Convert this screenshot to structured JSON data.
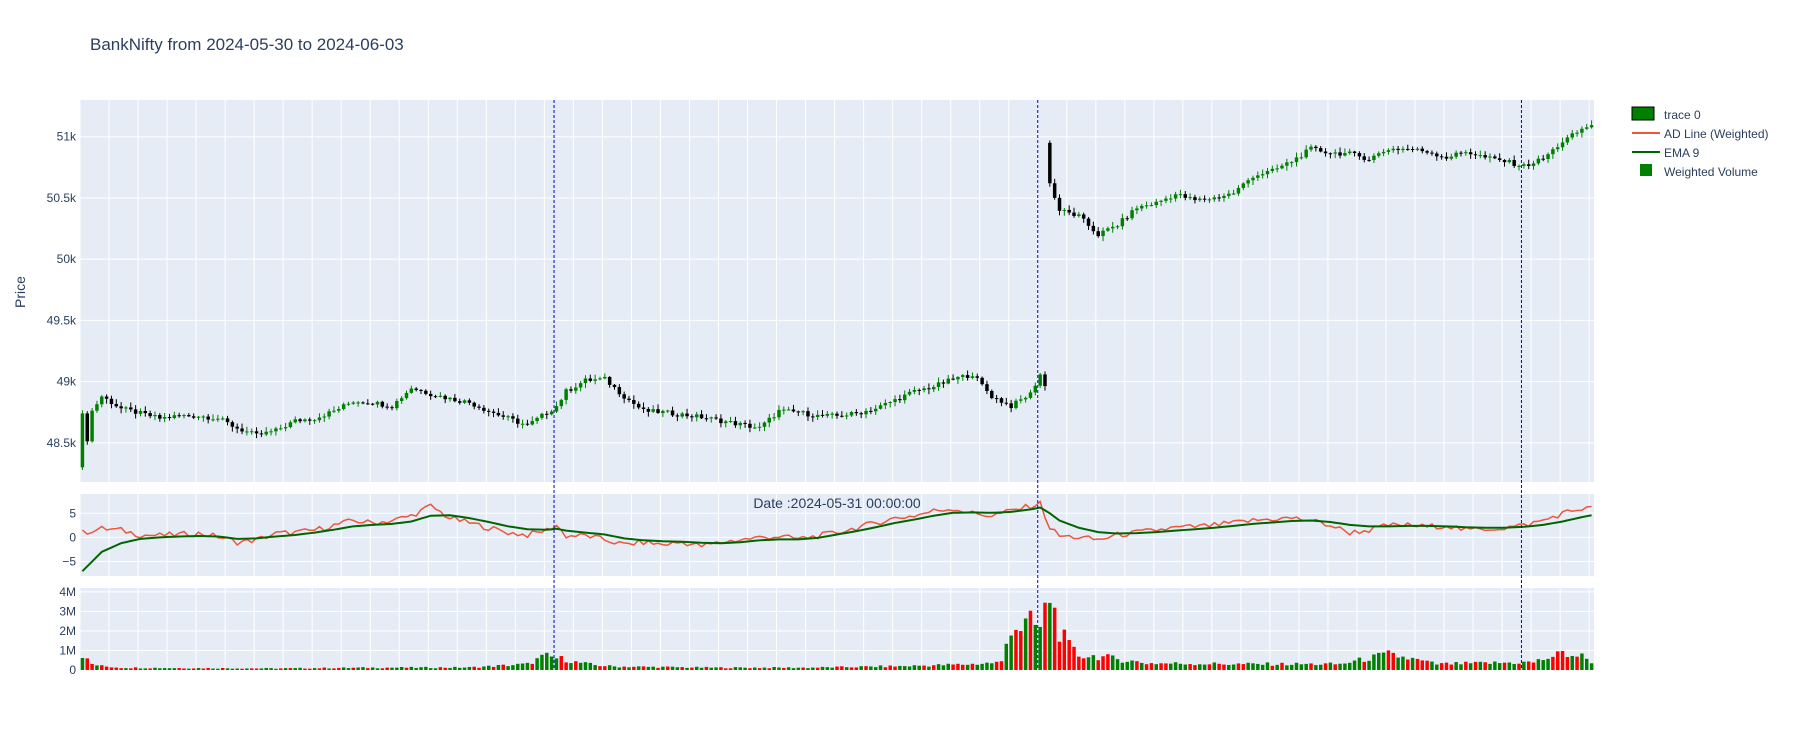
{
  "chart_data": {
    "type": "candlestick",
    "title": "BankNifty from 2024-05-30 to 2024-06-03",
    "panels": {
      "price": {
        "ylabel": "Price",
        "yrange": [
          48180,
          51300
        ],
        "yticks": [
          48500,
          49000,
          49500,
          50000,
          50500,
          51000
        ],
        "ytick_labels": [
          "48.5k",
          "49k",
          "49.5k",
          "50k",
          "50.5k",
          "51k"
        ]
      },
      "ad": {
        "yrange": [
          -8,
          9
        ],
        "yticks": [
          -5,
          0,
          5
        ],
        "ytick_labels": [
          "−5",
          "0",
          "5"
        ]
      },
      "volume": {
        "yrange": [
          0,
          4200000
        ],
        "yticks": [
          0,
          1000000,
          2000000,
          3000000,
          4000000
        ],
        "ytick_labels": [
          "0",
          "1M",
          "2M",
          "3M",
          "4M"
        ]
      }
    },
    "session_markers": [
      98,
      198,
      298
    ],
    "hover_annotation": "Date :2024-05-31 00:00:00",
    "price_path": [
      [
        0,
        48300
      ],
      [
        2,
        48760
      ],
      [
        4,
        48880
      ],
      [
        8,
        48780
      ],
      [
        12,
        48740
      ],
      [
        16,
        48700
      ],
      [
        20,
        48720
      ],
      [
        24,
        48720
      ],
      [
        28,
        48700
      ],
      [
        32,
        48620
      ],
      [
        36,
        48560
      ],
      [
        40,
        48600
      ],
      [
        44,
        48680
      ],
      [
        48,
        48700
      ],
      [
        52,
        48760
      ],
      [
        56,
        48840
      ],
      [
        60,
        48830
      ],
      [
        64,
        48800
      ],
      [
        68,
        48950
      ],
      [
        72,
        48900
      ],
      [
        76,
        48860
      ],
      [
        80,
        48830
      ],
      [
        84,
        48760
      ],
      [
        88,
        48700
      ],
      [
        92,
        48640
      ],
      [
        95,
        48720
      ],
      [
        98,
        48800
      ],
      [
        100,
        48920
      ],
      [
        104,
        49010
      ],
      [
        108,
        49020
      ],
      [
        112,
        48880
      ],
      [
        116,
        48760
      ],
      [
        120,
        48750
      ],
      [
        124,
        48730
      ],
      [
        128,
        48710
      ],
      [
        132,
        48680
      ],
      [
        136,
        48650
      ],
      [
        140,
        48620
      ],
      [
        144,
        48760
      ],
      [
        148,
        48750
      ],
      [
        152,
        48720
      ],
      [
        156,
        48720
      ],
      [
        160,
        48740
      ],
      [
        164,
        48780
      ],
      [
        168,
        48850
      ],
      [
        172,
        48920
      ],
      [
        176,
        48960
      ],
      [
        180,
        49020
      ],
      [
        184,
        49060
      ],
      [
        188,
        48880
      ],
      [
        192,
        48800
      ],
      [
        196,
        48900
      ],
      [
        198,
        49060
      ],
      [
        199,
        48960
      ]
    ],
    "price_path_2": [
      [
        200,
        50600
      ],
      [
        202,
        50400
      ],
      [
        206,
        50350
      ],
      [
        210,
        50200
      ],
      [
        214,
        50280
      ],
      [
        218,
        50420
      ],
      [
        222,
        50460
      ],
      [
        226,
        50530
      ],
      [
        230,
        50480
      ],
      [
        234,
        50500
      ],
      [
        238,
        50540
      ],
      [
        242,
        50680
      ],
      [
        246,
        50720
      ],
      [
        250,
        50800
      ],
      [
        254,
        50900
      ],
      [
        258,
        50870
      ],
      [
        262,
        50860
      ],
      [
        266,
        50820
      ],
      [
        270,
        50900
      ],
      [
        274,
        50900
      ],
      [
        278,
        50880
      ],
      [
        282,
        50830
      ],
      [
        286,
        50880
      ],
      [
        290,
        50830
      ],
      [
        294,
        50800
      ],
      [
        298,
        50760
      ],
      [
        302,
        50820
      ],
      [
        306,
        50960
      ],
      [
        310,
        51060
      ],
      [
        312,
        51100
      ]
    ],
    "ad_path": [
      [
        0,
        1
      ],
      [
        4,
        1.8
      ],
      [
        8,
        1.5
      ],
      [
        12,
        0.5
      ],
      [
        16,
        0.4
      ],
      [
        20,
        0.6
      ],
      [
        24,
        0.8
      ],
      [
        28,
        0.2
      ],
      [
        32,
        -1
      ],
      [
        36,
        -0.5
      ],
      [
        40,
        0.8
      ],
      [
        44,
        1
      ],
      [
        48,
        1.5
      ],
      [
        52,
        2.5
      ],
      [
        56,
        3.5
      ],
      [
        60,
        3
      ],
      [
        64,
        3.5
      ],
      [
        68,
        4.5
      ],
      [
        72,
        6.5
      ],
      [
        76,
        4
      ],
      [
        80,
        3
      ],
      [
        84,
        2
      ],
      [
        88,
        1
      ],
      [
        92,
        0.5
      ],
      [
        96,
        1.5
      ],
      [
        98,
        2.5
      ],
      [
        100,
        0.3
      ],
      [
        104,
        0.4
      ],
      [
        108,
        -0.5
      ],
      [
        112,
        -1.5
      ],
      [
        116,
        -1
      ],
      [
        120,
        -1.5
      ],
      [
        124,
        -1
      ],
      [
        128,
        -1.8
      ],
      [
        132,
        -1
      ],
      [
        136,
        -0.5
      ],
      [
        140,
        0
      ],
      [
        144,
        0.2
      ],
      [
        148,
        -0.3
      ],
      [
        152,
        0.3
      ],
      [
        156,
        1
      ],
      [
        160,
        2
      ],
      [
        164,
        3
      ],
      [
        168,
        4
      ],
      [
        172,
        4.5
      ],
      [
        176,
        5.5
      ],
      [
        180,
        6
      ],
      [
        184,
        5
      ],
      [
        188,
        4.5
      ],
      [
        192,
        5.5
      ],
      [
        196,
        6.5
      ],
      [
        198,
        7
      ],
      [
        200,
        2
      ],
      [
        202,
        0.3
      ],
      [
        206,
        0
      ],
      [
        210,
        -0.5
      ],
      [
        214,
        0.5
      ],
      [
        218,
        1
      ],
      [
        222,
        1.5
      ],
      [
        226,
        2
      ],
      [
        230,
        2.2
      ],
      [
        234,
        2.5
      ],
      [
        238,
        3
      ],
      [
        242,
        3.5
      ],
      [
        246,
        3.8
      ],
      [
        250,
        4
      ],
      [
        254,
        3.5
      ],
      [
        258,
        2.5
      ],
      [
        262,
        1
      ],
      [
        266,
        1.5
      ],
      [
        270,
        2.5
      ],
      [
        274,
        2.5
      ],
      [
        278,
        2.2
      ],
      [
        282,
        2.5
      ],
      [
        286,
        1.5
      ],
      [
        290,
        1.8
      ],
      [
        294,
        2
      ],
      [
        298,
        2.5
      ],
      [
        302,
        3.5
      ],
      [
        306,
        5
      ],
      [
        310,
        6
      ],
      [
        312,
        6
      ]
    ],
    "ema_path": [
      [
        0,
        -7
      ],
      [
        4,
        -3
      ],
      [
        8,
        -1.2
      ],
      [
        12,
        -0.3
      ],
      [
        16,
        0
      ],
      [
        20,
        0.2
      ],
      [
        24,
        0.3
      ],
      [
        28,
        0.2
      ],
      [
        32,
        -0.3
      ],
      [
        36,
        -0.2
      ],
      [
        40,
        0.2
      ],
      [
        44,
        0.5
      ],
      [
        48,
        1
      ],
      [
        52,
        1.6
      ],
      [
        56,
        2.3
      ],
      [
        60,
        2.6
      ],
      [
        64,
        2.8
      ],
      [
        68,
        3.3
      ],
      [
        72,
        4.5
      ],
      [
        76,
        4.6
      ],
      [
        80,
        4
      ],
      [
        84,
        3.2
      ],
      [
        88,
        2.3
      ],
      [
        92,
        1.7
      ],
      [
        96,
        1.6
      ],
      [
        98,
        1.8
      ],
      [
        100,
        1.4
      ],
      [
        104,
        1
      ],
      [
        108,
        0.6
      ],
      [
        112,
        -0.2
      ],
      [
        116,
        -0.6
      ],
      [
        120,
        -0.8
      ],
      [
        124,
        -0.9
      ],
      [
        128,
        -1.1
      ],
      [
        132,
        -1.2
      ],
      [
        136,
        -1
      ],
      [
        140,
        -0.6
      ],
      [
        144,
        -0.4
      ],
      [
        148,
        -0.4
      ],
      [
        152,
        -0.1
      ],
      [
        156,
        0.6
      ],
      [
        160,
        1.3
      ],
      [
        164,
        2.1
      ],
      [
        168,
        3
      ],
      [
        172,
        3.7
      ],
      [
        176,
        4.5
      ],
      [
        180,
        5.1
      ],
      [
        184,
        5.2
      ],
      [
        188,
        5.1
      ],
      [
        192,
        5.3
      ],
      [
        196,
        5.8
      ],
      [
        198,
        6.2
      ],
      [
        200,
        5
      ],
      [
        202,
        3.5
      ],
      [
        206,
        2
      ],
      [
        210,
        1.1
      ],
      [
        214,
        0.8
      ],
      [
        218,
        0.9
      ],
      [
        222,
        1.1
      ],
      [
        226,
        1.4
      ],
      [
        230,
        1.7
      ],
      [
        234,
        2
      ],
      [
        238,
        2.4
      ],
      [
        242,
        2.8
      ],
      [
        246,
        3.1
      ],
      [
        250,
        3.4
      ],
      [
        254,
        3.5
      ],
      [
        258,
        3.2
      ],
      [
        262,
        2.6
      ],
      [
        266,
        2.3
      ],
      [
        270,
        2.3
      ],
      [
        274,
        2.4
      ],
      [
        278,
        2.4
      ],
      [
        282,
        2.3
      ],
      [
        286,
        2.1
      ],
      [
        290,
        2
      ],
      [
        294,
        2
      ],
      [
        298,
        2.2
      ],
      [
        302,
        2.6
      ],
      [
        306,
        3.3
      ],
      [
        310,
        4.2
      ],
      [
        312,
        4.6
      ]
    ],
    "volume_path": [
      [
        0,
        800000
      ],
      [
        1,
        500000
      ],
      [
        2,
        300000
      ],
      [
        4,
        200000
      ],
      [
        8,
        120000
      ],
      [
        20,
        100000
      ],
      [
        40,
        80000
      ],
      [
        60,
        120000
      ],
      [
        80,
        130000
      ],
      [
        92,
        300000
      ],
      [
        95,
        650000
      ],
      [
        96,
        700000
      ],
      [
        98,
        600000
      ],
      [
        100,
        550000
      ],
      [
        102,
        400000
      ],
      [
        106,
        250000
      ],
      [
        110,
        180000
      ],
      [
        130,
        120000
      ],
      [
        150,
        120000
      ],
      [
        170,
        200000
      ],
      [
        184,
        300000
      ],
      [
        190,
        400000
      ],
      [
        192,
        2300000
      ],
      [
        194,
        2200000
      ],
      [
        196,
        2400000
      ],
      [
        198,
        2100000
      ],
      [
        200,
        3850000
      ],
      [
        202,
        2000000
      ],
      [
        204,
        1200000
      ],
      [
        206,
        750000
      ],
      [
        210,
        700000
      ],
      [
        220,
        350000
      ],
      [
        240,
        300000
      ],
      [
        260,
        300000
      ],
      [
        270,
        800000
      ],
      [
        280,
        300000
      ],
      [
        300,
        400000
      ],
      [
        306,
        850000
      ],
      [
        310,
        700000
      ],
      [
        312,
        450000
      ]
    ],
    "legend": [
      {
        "name": "trace 0",
        "kind": "candle",
        "color": "#008000"
      },
      {
        "name": "AD Line (Weighted)",
        "kind": "line",
        "color": "#ef553b"
      },
      {
        "name": "EMA 9",
        "kind": "line",
        "color": "#006400"
      },
      {
        "name": "Weighted Volume",
        "kind": "bar",
        "color": "#008000"
      }
    ],
    "colors": {
      "plot_bg": "#e5ecf6",
      "grid": "#ffffff",
      "up": "#008000",
      "down": "#000000",
      "vol_up": "#008000",
      "vol_down": "#ff0000",
      "marker_line": "#0000cc",
      "text": "#2a3f5f"
    }
  }
}
